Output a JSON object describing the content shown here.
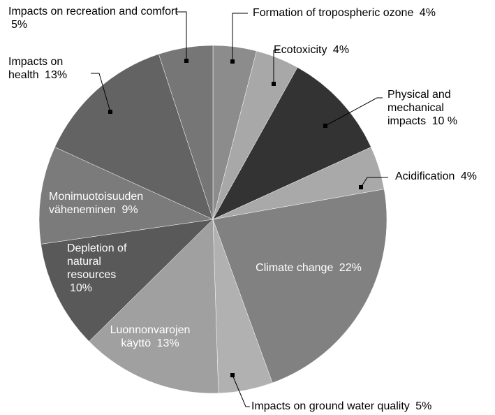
{
  "chart_data": {
    "type": "pie",
    "categories": [
      "Formation of tropospheric ozone",
      "Ecotoxicity",
      "Physical and mechanical impacts",
      "Acidification",
      "Climate change",
      "Impacts on ground water quality",
      "Luonnonvarojen käyttö",
      "Depletion of natural resources",
      "Monimuotoisuuden väheneminen",
      "Impacts on health",
      "Impacts on recreation and comfort"
    ],
    "values": [
      4,
      4,
      10,
      4,
      22,
      5,
      13,
      10,
      9,
      13,
      5
    ],
    "value_labels": [
      "4%",
      "4%",
      "10 %",
      "4%",
      "22%",
      "5%",
      "13%",
      "10%",
      "9%",
      "13%",
      "5%"
    ],
    "colors": [
      "#8c8c8c",
      "#a8a8a8",
      "#333333",
      "#a9a9a9",
      "#818181",
      "#b1b1b1",
      "#a0a0a0",
      "#595959",
      "#7b7b7b",
      "#636363",
      "#767676"
    ]
  }
}
